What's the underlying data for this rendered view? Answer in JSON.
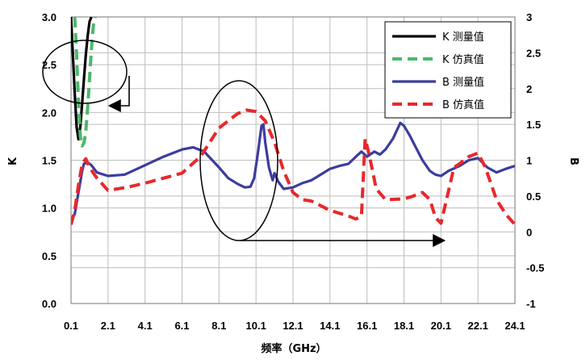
{
  "chart_data": {
    "type": "line",
    "xlabel": "频率（GHz）",
    "ylabel_left": "K",
    "ylabel_right": "B",
    "xlim": [
      0.1,
      24.1
    ],
    "ylim_left": [
      0.0,
      3.0
    ],
    "ylim_right": [
      -1,
      3
    ],
    "x_ticks": [
      "0.1",
      "2.1",
      "4.1",
      "6.1",
      "8.1",
      "10.1",
      "12.1",
      "14.1",
      "16.1",
      "18.1",
      "20.1",
      "22.1",
      "24.1"
    ],
    "y_left_ticks": [
      "0.0",
      "0.5",
      "1.0",
      "1.5",
      "2.0",
      "2.5",
      "3.0"
    ],
    "y_right_ticks": [
      "-1",
      "-0.5",
      "0",
      "0.5",
      "1",
      "1.5",
      "2",
      "2.5",
      "3"
    ],
    "grid": true,
    "legend_position": "top-right",
    "series": [
      {
        "name": "K 测量值",
        "axis": "left",
        "color": "#000000",
        "style": "solid",
        "x": [
          0.1,
          0.2,
          0.3,
          0.4,
          0.5,
          0.6,
          0.7,
          0.8,
          0.9,
          1.0,
          1.1,
          1.2
        ],
        "y": [
          3.0,
          2.6,
          2.2,
          1.85,
          1.72,
          1.85,
          2.1,
          2.35,
          2.6,
          2.8,
          2.95,
          3.0
        ]
      },
      {
        "name": "K 仿真值",
        "axis": "left",
        "color": "#4cb86a",
        "style": "dashed",
        "x": [
          0.3,
          0.4,
          0.5,
          0.6,
          0.7,
          0.8,
          0.9,
          1.0,
          1.1,
          1.2,
          1.3,
          1.4
        ],
        "y": [
          3.0,
          2.6,
          2.1,
          1.75,
          1.65,
          1.68,
          1.8,
          2.05,
          2.35,
          2.65,
          2.9,
          3.0
        ]
      },
      {
        "name": "B 测量值",
        "axis": "right",
        "color": "#3c3c9e",
        "style": "solid",
        "x": [
          0.1,
          0.3,
          0.5,
          0.7,
          0.8,
          1.0,
          1.2,
          1.5,
          2.1,
          3.0,
          4.1,
          5.1,
          6.1,
          6.7,
          7.3,
          8.1,
          8.6,
          9.1,
          9.5,
          9.8,
          10.0,
          10.2,
          10.4,
          10.5,
          10.6,
          10.8,
          11.0,
          11.1,
          11.3,
          11.6,
          12.1,
          12.6,
          13.1,
          13.6,
          14.1,
          14.6,
          15.1,
          15.5,
          15.8,
          16.1,
          16.5,
          16.8,
          17.1,
          17.5,
          17.9,
          18.1,
          18.4,
          18.8,
          19.1,
          19.5,
          19.8,
          20.1,
          20.5,
          21.1,
          21.6,
          22.1,
          22.6,
          23.1,
          23.6,
          24.1
        ],
        "y": [
          0.15,
          0.25,
          0.55,
          0.85,
          0.95,
          0.97,
          0.93,
          0.83,
          0.78,
          0.8,
          0.93,
          1.05,
          1.15,
          1.18,
          1.12,
          0.9,
          0.75,
          0.67,
          0.62,
          0.63,
          0.75,
          1.1,
          1.48,
          1.5,
          1.25,
          0.9,
          0.72,
          0.82,
          0.7,
          0.6,
          0.62,
          0.68,
          0.72,
          0.8,
          0.88,
          0.92,
          0.95,
          1.05,
          1.12,
          1.05,
          1.12,
          1.08,
          1.15,
          1.3,
          1.52,
          1.48,
          1.35,
          1.15,
          1.0,
          0.85,
          0.8,
          0.78,
          0.85,
          0.92,
          1.0,
          1.03,
          0.9,
          0.83,
          0.88,
          0.92
        ]
      },
      {
        "name": "B 仿真值",
        "axis": "right",
        "color": "#e8282b",
        "style": "dashed",
        "x": [
          0.1,
          0.3,
          0.5,
          0.7,
          0.9,
          1.1,
          1.5,
          2.1,
          3.1,
          4.1,
          5.1,
          6.1,
          7.1,
          8.1,
          9.1,
          9.6,
          10.1,
          10.6,
          11.1,
          11.6,
          12.1,
          12.6,
          13.1,
          14.1,
          15.1,
          15.5,
          15.8,
          16.0,
          16.2,
          16.6,
          17.1,
          18.1,
          18.6,
          19.1,
          19.5,
          19.8,
          20.1,
          20.4,
          20.8,
          21.1,
          21.6,
          22.1,
          22.5,
          23.1,
          23.6,
          24.1
        ],
        "y": [
          0.1,
          0.3,
          0.65,
          0.95,
          1.02,
          0.9,
          0.75,
          0.58,
          0.62,
          0.68,
          0.75,
          0.82,
          1.05,
          1.45,
          1.65,
          1.7,
          1.68,
          1.55,
          1.25,
          0.85,
          0.55,
          0.45,
          0.43,
          0.3,
          0.22,
          0.18,
          0.22,
          1.3,
          1.1,
          0.6,
          0.45,
          0.46,
          0.5,
          0.55,
          0.45,
          0.2,
          0.12,
          0.45,
          0.9,
          0.95,
          1.05,
          1.1,
          0.9,
          0.45,
          0.25,
          0.1
        ]
      }
    ]
  }
}
